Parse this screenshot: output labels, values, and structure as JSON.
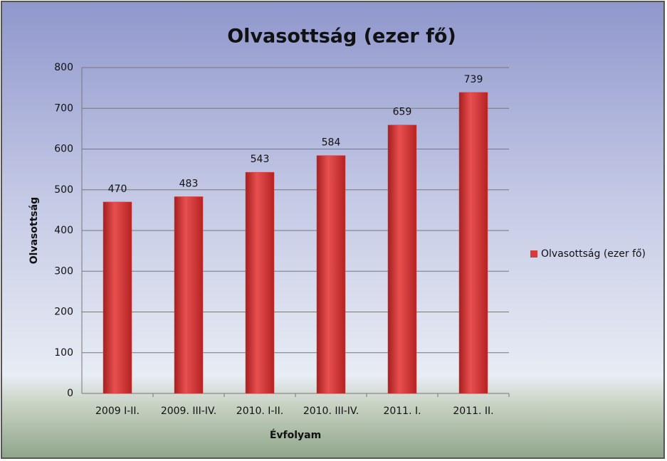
{
  "chart_data": {
    "type": "bar",
    "title": "Olvasottság (ezer fő)",
    "x_label": "Évfolyam",
    "y_label": "Olvasottság",
    "categories": [
      "2009 I-II.",
      "2009. III-IV.",
      "2010. I-II.",
      "2010. III-IV.",
      "2011. I.",
      "2011. II."
    ],
    "series": [
      {
        "name": "Olvasottság (ezer fő)",
        "color": "#d63a3a",
        "values": [
          470,
          483,
          543,
          584,
          659,
          739
        ]
      }
    ],
    "ylim": [
      0,
      800
    ],
    "yticks": [
      0,
      100,
      200,
      300,
      400,
      500,
      600,
      700,
      800
    ],
    "grid": true,
    "legend": "right"
  }
}
